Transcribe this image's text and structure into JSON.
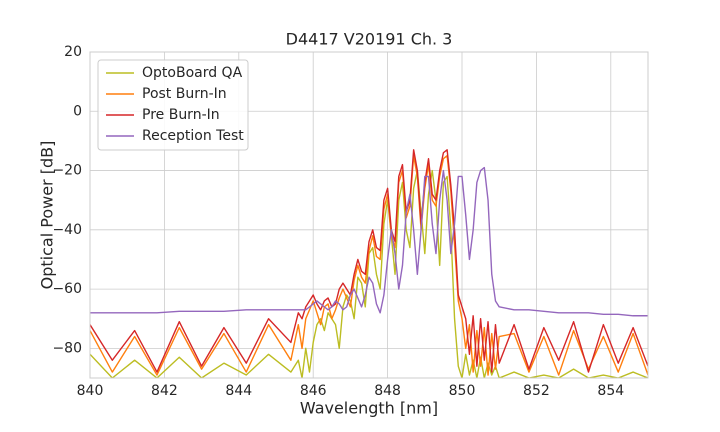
{
  "chart_data": {
    "type": "line",
    "title": "D4417 V20191 Ch. 3",
    "x_label": "Wavelength [nm]",
    "y_label": "Optical Power [dB]",
    "xlim": [
      840,
      855
    ],
    "xticks": [
      840,
      842,
      844,
      846,
      848,
      850,
      852,
      854
    ],
    "ylim": [
      -90,
      20
    ],
    "yticks": [
      {
        "value": -80,
        "label": "−80"
      },
      {
        "value": -60,
        "label": "−60"
      },
      {
        "value": -40,
        "label": "−40"
      },
      {
        "value": -20,
        "label": "−20"
      },
      0,
      20
    ],
    "grid": true,
    "legend": "upper left",
    "x": [
      840,
      840.6,
      841.2,
      841.8,
      842.4,
      843,
      843.6,
      844.2,
      844.8,
      845.4,
      845.6,
      845.7,
      845.8,
      845.9,
      846.0,
      846.1,
      846.2,
      846.3,
      846.4,
      846.5,
      846.6,
      846.7,
      846.8,
      846.9,
      847.0,
      847.1,
      847.2,
      847.3,
      847.4,
      847.5,
      847.6,
      847.7,
      847.8,
      847.9,
      848.0,
      848.1,
      848.2,
      848.3,
      848.4,
      848.5,
      848.6,
      848.7,
      848.8,
      848.9,
      849.0,
      849.1,
      849.2,
      849.3,
      849.4,
      849.5,
      849.6,
      849.7,
      849.8,
      849.9,
      850.0,
      850.1,
      850.2,
      850.3,
      850.4,
      850.5,
      850.6,
      850.7,
      850.8,
      850.9,
      851.0,
      851.4,
      851.8,
      852.2,
      852.6,
      853,
      853.4,
      853.8,
      854.2,
      854.6,
      855
    ],
    "series": [
      {
        "name": "OptoBoard QA",
        "color": "#bcbd22",
        "values": [
          -82,
          -90,
          -84,
          -90,
          -83,
          -90,
          -85,
          -89,
          -82,
          -88,
          -84,
          -90,
          -80,
          -88,
          -78,
          -72,
          -70,
          -74,
          -68,
          -70,
          -72,
          -80,
          -66,
          -62,
          -64,
          -70,
          -56,
          -58,
          -66,
          -48,
          -46,
          -55,
          -60,
          -38,
          -30,
          -42,
          -55,
          -30,
          -24,
          -40,
          -46,
          -26,
          -20,
          -34,
          -48,
          -28,
          -20,
          -30,
          -52,
          -24,
          -22,
          -40,
          -70,
          -86,
          -90,
          -82,
          -89,
          -84,
          -90,
          -83,
          -90,
          -85,
          -89,
          -86,
          -90,
          -88,
          -90,
          -89,
          -90,
          -87,
          -90,
          -89,
          -90,
          -88,
          -90
        ]
      },
      {
        "name": "Post Burn-In",
        "color": "#ff7f0e",
        "values": [
          -74,
          -88,
          -76,
          -89,
          -73,
          -87,
          -75,
          -88,
          -72,
          -84,
          -72,
          -80,
          -70,
          -67,
          -64,
          -68,
          -72,
          -66,
          -65,
          -70,
          -67,
          -63,
          -60,
          -63,
          -66,
          -57,
          -52,
          -56,
          -58,
          -47,
          -42,
          -49,
          -50,
          -33,
          -28,
          -42,
          -46,
          -24,
          -20,
          -36,
          -32,
          -15,
          -22,
          -40,
          -26,
          -18,
          -30,
          -32,
          -22,
          -16,
          -15,
          -27,
          -45,
          -64,
          -70,
          -80,
          -72,
          -88,
          -74,
          -86,
          -73,
          -89,
          -75,
          -87,
          -76,
          -75,
          -88,
          -76,
          -89,
          -74,
          -87,
          -76,
          -88,
          -75,
          -89
        ]
      },
      {
        "name": "Pre Burn-In",
        "color": "#d62728",
        "values": [
          -72,
          -84,
          -74,
          -88,
          -71,
          -86,
          -73,
          -85,
          -70,
          -78,
          -68,
          -70,
          -66,
          -64,
          -62,
          -65,
          -67,
          -64,
          -63,
          -66,
          -65,
          -60,
          -58,
          -60,
          -62,
          -55,
          -50,
          -54,
          -55,
          -44,
          -40,
          -46,
          -47,
          -30,
          -26,
          -40,
          -44,
          -22,
          -18,
          -34,
          -30,
          -13,
          -20,
          -38,
          -24,
          -16,
          -28,
          -30,
          -20,
          -14,
          -13,
          -25,
          -40,
          -62,
          -66,
          -70,
          -82,
          -69,
          -86,
          -70,
          -84,
          -71,
          -88,
          -72,
          -85,
          -72,
          -87,
          -73,
          -84,
          -71,
          -88,
          -72,
          -85,
          -73,
          -86
        ]
      },
      {
        "name": "Reception Test",
        "color": "#9467bd",
        "values": [
          -68,
          -68,
          -68,
          -68,
          -67.5,
          -67.5,
          -67.5,
          -67,
          -67,
          -67,
          -67,
          -67,
          -67,
          -66,
          -65,
          -64,
          -65,
          -66,
          -67,
          -66,
          -64,
          -65,
          -67,
          -66,
          -62,
          -60,
          -63,
          -66,
          -62,
          -56,
          -58,
          -65,
          -68,
          -62,
          -50,
          -40,
          -48,
          -60,
          -52,
          -34,
          -28,
          -40,
          -55,
          -40,
          -22,
          -22,
          -38,
          -48,
          -30,
          -20,
          -30,
          -48,
          -38,
          -22,
          -22,
          -35,
          -50,
          -40,
          -24,
          -20,
          -19,
          -30,
          -55,
          -64,
          -66,
          -67,
          -67,
          -67.5,
          -68,
          -68,
          -68,
          -68.5,
          -68.5,
          -69,
          -69
        ]
      }
    ]
  }
}
